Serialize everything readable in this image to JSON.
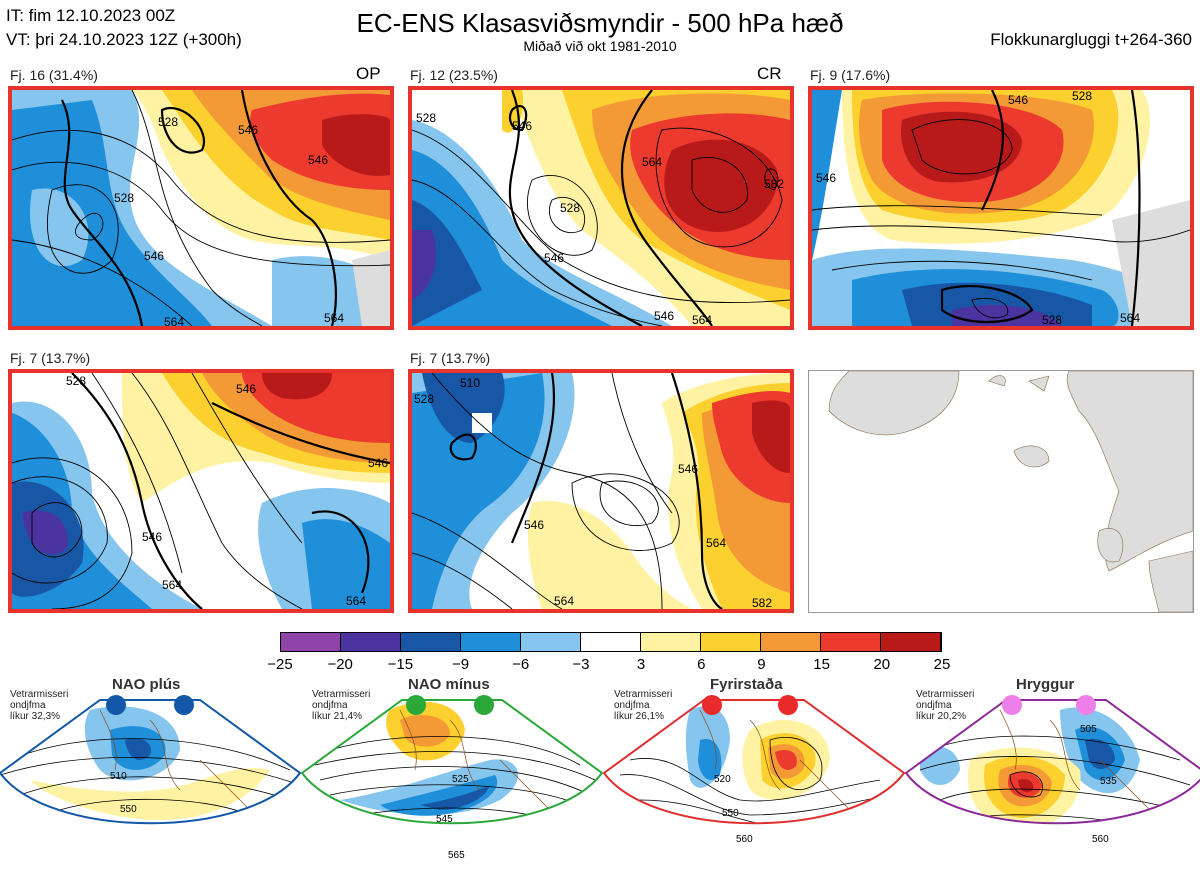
{
  "header": {
    "it_line": "IT: fim 12.10.2023 00Z",
    "vt_line": "VT: þri 24.10.2023 12Z  (+300h)",
    "title": "EC-ENS Klasasviðsmyndir - 500 hPa hæð",
    "subtitle": "Miðað við okt 1981-2010",
    "window": "Flokkunargluggi t+264-360"
  },
  "panels": [
    {
      "label": "Fj. 16 (31.4%)",
      "tag": "OP",
      "contours": [
        "528",
        "546",
        "528",
        "546",
        "564",
        "564",
        "546"
      ]
    },
    {
      "label": "Fj. 12 (23.5%)",
      "tag": "CR",
      "contours": [
        "528",
        "546",
        "528",
        "546",
        "564",
        "582",
        "546",
        "564"
      ]
    },
    {
      "label": "Fj. 9 (17.6%)",
      "tag": "",
      "contours": [
        "546",
        "528",
        "546",
        "564",
        "528"
      ]
    },
    {
      "label": "Fj. 7 (13.7%)",
      "tag": "",
      "contours": [
        "528",
        "546",
        "546",
        "564",
        "564",
        "546"
      ]
    },
    {
      "label": "Fj. 7 (13.7%)",
      "tag": "",
      "contours": [
        "510",
        "528",
        "546",
        "546",
        "564",
        "564",
        "582"
      ]
    }
  ],
  "colorbar": {
    "colors": [
      "#8e44a8",
      "#4b33a0",
      "#1856a6",
      "#1e8fd8",
      "#86c6ee",
      "#ffffff",
      "#fff3a3",
      "#fcd02e",
      "#f39a36",
      "#ec3a2e",
      "#b81a1a"
    ],
    "labels": [
      "−25",
      "−20",
      "−15",
      "−9",
      "−6",
      "−3",
      "3",
      "6",
      "9",
      "15",
      "20",
      "25"
    ]
  },
  "regimes": [
    {
      "name": "NAO plús",
      "note1": "Vetrarmisseri",
      "note2": "ondjfma",
      "note3": "líkur 32,3%",
      "color": "#1257a8",
      "dot": "#1257a8",
      "contours": [
        "510",
        "550"
      ]
    },
    {
      "name": "NAO mínus",
      "note1": "Vetrarmisseri",
      "note2": "ondjfma",
      "note3": "líkur 21,4%",
      "color": "#2aa83a",
      "dot": "#2aa83a",
      "contours": [
        "525",
        "545",
        "565"
      ]
    },
    {
      "name": "Fyrirstaða",
      "note1": "Vetrarmisseri",
      "note2": "ondjfma",
      "note3": "líkur 26,1%",
      "color": "#e02e2e",
      "dot": "#e82a2a",
      "contours": [
        "520",
        "550",
        "560"
      ]
    },
    {
      "name": "Hryggur",
      "note1": "Vetrarmisseri",
      "note2": "ondjfma",
      "note3": "líkur 20,2%",
      "color": "#8a2a96",
      "dot": "#ee7ee8",
      "contours": [
        "505",
        "535",
        "560"
      ]
    }
  ]
}
